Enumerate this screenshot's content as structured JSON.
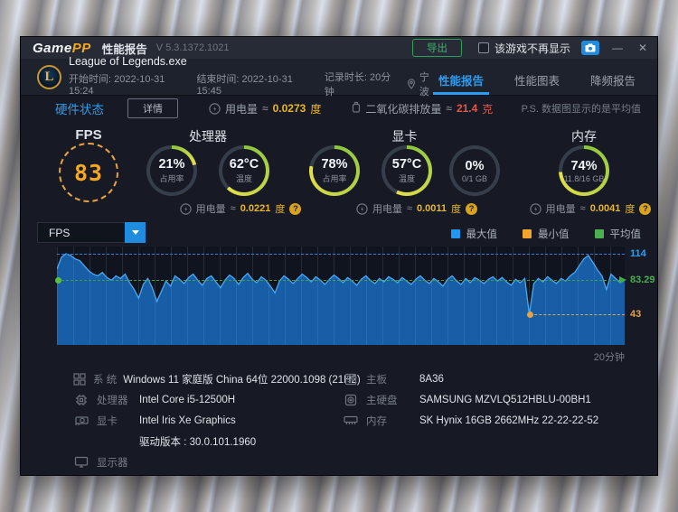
{
  "titlebar": {
    "logo_game": "Game",
    "logo_pp": "PP",
    "app_title": "性能报告",
    "version": "V 5.3.1372.1021",
    "export_label": "导出",
    "dont_show_label": "该游戏不再显示",
    "minimize_glyph": "—",
    "close_glyph": "✕"
  },
  "game_info": {
    "exe_name": "League of Legends.exe",
    "start_time": "开始时间: 2022-10-31 15:24",
    "end_time": "结束时间: 2022-10-31 15:45",
    "duration": "记录时长: 20分钟",
    "location": "宁波"
  },
  "tabs": [
    {
      "label": "性能报告",
      "active": true
    },
    {
      "label": "性能图表",
      "active": false
    },
    {
      "label": "降频报告",
      "active": false
    }
  ],
  "status_bar": {
    "title": "硬件状态",
    "detail_button": "详情",
    "power_label": "用电量",
    "approx": "≈",
    "power_value": "0.0273",
    "power_unit": "度",
    "co2_label": "二氧化碳排放量",
    "co2_value": "21.4",
    "co2_unit": "克",
    "note": "P.S. 数据图显示的是平均值"
  },
  "gauges": {
    "power_label": "用电量",
    "approx": "≈",
    "power_unit": "度",
    "fps": {
      "title": "FPS",
      "value": "83"
    },
    "cpu": {
      "title": "处理器",
      "usage_value": "21%",
      "usage_label": "占用率",
      "usage_pct": 21,
      "temp_value": "62°C",
      "temp_label": "温度",
      "temp_pct": 62,
      "power_value": "0.0221"
    },
    "gpu": {
      "title": "显卡",
      "usage_value": "78%",
      "usage_label": "占用率",
      "usage_pct": 78,
      "temp_value": "57°C",
      "temp_label": "温度",
      "temp_pct": 57,
      "vram_value": "0%",
      "vram_label": "0/1 GB",
      "vram_pct": 0,
      "power_value": "0.0011"
    },
    "mem": {
      "title": "内存",
      "usage_value": "74%",
      "usage_label": "11.8/16 GB",
      "usage_pct": 74,
      "power_value": "0.0041"
    }
  },
  "chart_controls": {
    "selected_metric": "FPS",
    "legend": [
      {
        "label": "最大值",
        "color": "#2196f3"
      },
      {
        "label": "最小值",
        "color": "#f0a52c"
      },
      {
        "label": "平均值",
        "color": "#4caf50"
      }
    ]
  },
  "chart_data": {
    "type": "area",
    "series_name": "FPS",
    "x_axis_label": "20分钟",
    "ylim": [
      0,
      120
    ],
    "grid": "vertical",
    "max_value": 114,
    "avg_value": 83.29,
    "min_value": 43,
    "max_label": "114",
    "avg_label": "83.29",
    "min_label": "43",
    "min_point_x_fraction": 0.833,
    "values": [
      96,
      110,
      114,
      112,
      108,
      106,
      100,
      94,
      90,
      88,
      92,
      86,
      83,
      88,
      85,
      90,
      80,
      72,
      62,
      78,
      85,
      74,
      58,
      70,
      82,
      76,
      88,
      84,
      79,
      86,
      90,
      83,
      77,
      85,
      88,
      81,
      74,
      83,
      89,
      85,
      78,
      86,
      91,
      84,
      80,
      87,
      83,
      76,
      68,
      82,
      88,
      84,
      79,
      85,
      90,
      86,
      81,
      87,
      83,
      78,
      84,
      89,
      85,
      80,
      86,
      82,
      77,
      84,
      88,
      83,
      79,
      85,
      81,
      87,
      84,
      80,
      86,
      82,
      78,
      84,
      88,
      83,
      79,
      85,
      81,
      76,
      84,
      88,
      82,
      78,
      85,
      80,
      86,
      83,
      79,
      84,
      87,
      82,
      86,
      81,
      77,
      84,
      80,
      85,
      43,
      79,
      85,
      81,
      87,
      83,
      79,
      85,
      82,
      88,
      92,
      100,
      108,
      112,
      104,
      95,
      88,
      72,
      90,
      85,
      80,
      83
    ]
  },
  "system_info": {
    "left": [
      {
        "label": "系 统",
        "value": "Windows 11 家庭版 China 64位 22000.1098 (21H2)"
      },
      {
        "label": "处理器",
        "value": "Intel Core i5-12500H"
      },
      {
        "label": "显卡",
        "value": "Intel Iris Xe Graphics"
      },
      {
        "label": "",
        "value": "驱动版本 : 30.0.101.1960"
      },
      {
        "label": "显示器",
        "value": ""
      }
    ],
    "right": [
      {
        "label": "主板",
        "value": "8A36"
      },
      {
        "label": "主硬盘",
        "value": "SAMSUNG MZVLQ512HBLU-00BH1"
      },
      {
        "label": "内存",
        "value": "SK Hynix 16GB 2662MHz 22-22-22-52"
      }
    ]
  }
}
